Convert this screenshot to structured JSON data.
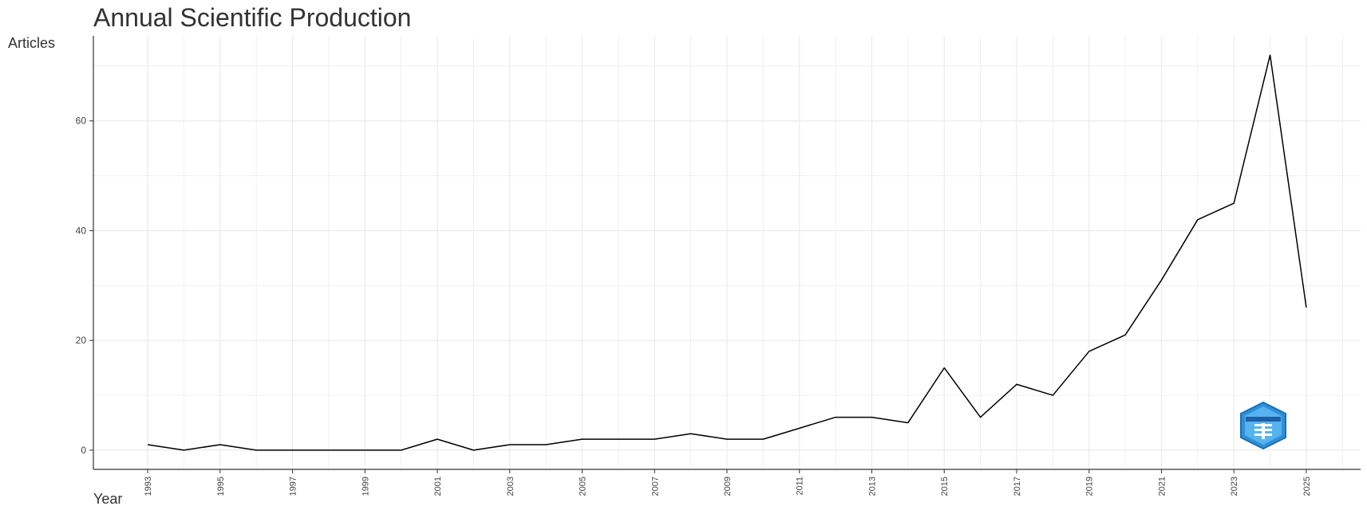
{
  "chart_data": {
    "type": "line",
    "title": "Annual Scientific Production",
    "xlabel": "Year",
    "ylabel": "Articles",
    "x": [
      1993,
      1994,
      1995,
      1996,
      1997,
      1998,
      1999,
      2000,
      2001,
      2002,
      2003,
      2004,
      2005,
      2006,
      2007,
      2008,
      2009,
      2010,
      2011,
      2012,
      2013,
      2014,
      2015,
      2016,
      2017,
      2018,
      2019,
      2020,
      2021,
      2022,
      2023,
      2024,
      2025
    ],
    "series": [
      {
        "values": [
          1,
          0,
          1,
          0,
          0,
          0,
          0,
          0,
          2,
          0,
          1,
          1,
          2,
          2,
          2,
          3,
          2,
          2,
          4,
          6,
          6,
          5,
          15,
          6,
          12,
          10,
          18,
          21,
          31,
          42,
          45,
          72,
          26
        ],
        "color": "#000000"
      }
    ],
    "x_ticks": [
      "1993",
      "1995",
      "1997",
      "1999",
      "2001",
      "2003",
      "2005",
      "2007",
      "2009",
      "2011",
      "2013",
      "2015",
      "2017",
      "2019",
      "2021",
      "2023",
      "2025"
    ],
    "y_ticks": [
      "0",
      "20",
      "40",
      "60"
    ],
    "xlim": [
      1991.5,
      2026.5
    ],
    "ylim": [
      -3.5,
      75.5
    ],
    "grid": true,
    "grid_color": "#ebebeb",
    "axis_color": "#333333",
    "logo": "bibliometrix-logo-icon"
  }
}
